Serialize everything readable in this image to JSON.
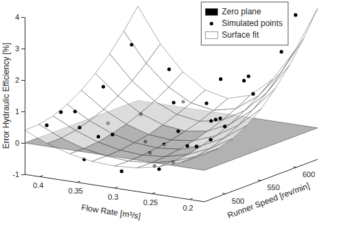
{
  "chart_data": {
    "type": "surface3d",
    "x_label": "Flow Rate [m³/s]",
    "y_label": "Runner Speed [rev/min]",
    "z_label": "Error Hydraulic Efficiency [%]",
    "xlim": [
      0.18,
      0.42
    ],
    "xticks": [
      0.2,
      0.25,
      0.3,
      0.35,
      0.4
    ],
    "ylim": [
      470,
      630
    ],
    "yticks": [
      500,
      550,
      600
    ],
    "zlim": [
      -1,
      4
    ],
    "zticks": [
      -1,
      0,
      1,
      2,
      3,
      4
    ],
    "grid": false,
    "legend": "northeast",
    "series": [
      {
        "name": "Zero plane",
        "type": "plane",
        "color": "#000000",
        "z": 0
      },
      {
        "name": "Simulated points",
        "type": "scatter",
        "marker": "circle",
        "color": "#000000",
        "x": [
          0.4,
          0.4,
          0.4,
          0.4,
          0.35,
          0.35,
          0.35,
          0.35,
          0.35,
          0.3,
          0.3,
          0.3,
          0.3,
          0.25,
          0.25,
          0.25,
          0.25,
          0.2,
          0.2,
          0.2,
          0.2,
          0.2,
          0.375,
          0.325,
          0.275,
          0.225,
          0.325,
          0.275,
          0.375,
          0.225,
          0.3,
          0.35,
          0.25,
          0.4,
          0.2,
          0.3
        ],
        "y": [
          480,
          520,
          560,
          600,
          480,
          520,
          560,
          600,
          620,
          480,
          520,
          560,
          600,
          480,
          520,
          560,
          600,
          480,
          520,
          560,
          600,
          620,
          500,
          540,
          500,
          540,
          580,
          580,
          540,
          580,
          540,
          500,
          500,
          500,
          500,
          620
        ],
        "z": [
          0.55,
          0.65,
          1.1,
          2.1,
          -0.35,
          0.1,
          0.4,
          1.5,
          0.3,
          -0.55,
          -0.3,
          0.05,
          0.6,
          -0.3,
          0.1,
          0.6,
          1.5,
          0.6,
          0.9,
          1.6,
          2.6,
          3.6,
          0.4,
          -0.2,
          -0.45,
          0.9,
          0.7,
          0.3,
          0.2,
          1.9,
          -0.2,
          0.2,
          -0.25,
          0.8,
          0.65,
          1.2
        ]
      },
      {
        "name": "Surface fit",
        "type": "surface",
        "color": "#ffffff",
        "x": [
          0.18,
          0.21,
          0.24,
          0.27,
          0.3,
          0.33,
          0.36,
          0.39,
          0.42
        ],
        "y": [
          470,
          490,
          510,
          530,
          550,
          570,
          590,
          610,
          630
        ],
        "z": [
          [
            0.5,
            0.15,
            -0.1,
            -0.25,
            -0.3,
            -0.26,
            -0.13,
            0.09,
            0.4
          ],
          [
            0.53,
            0.16,
            -0.1,
            -0.26,
            -0.31,
            -0.26,
            -0.13,
            0.1,
            0.42
          ],
          [
            0.67,
            0.25,
            -0.05,
            -0.23,
            -0.29,
            -0.24,
            -0.09,
            0.17,
            0.52
          ],
          [
            0.92,
            0.42,
            0.06,
            -0.16,
            -0.23,
            -0.17,
            0.01,
            0.31,
            0.72
          ],
          [
            1.28,
            0.65,
            0.21,
            -0.06,
            -0.15,
            -0.08,
            0.14,
            0.5,
            1.0
          ],
          [
            1.75,
            0.97,
            0.41,
            0.08,
            -0.03,
            0.06,
            0.32,
            0.76,
            1.37
          ],
          [
            2.32,
            1.35,
            0.66,
            0.25,
            0.11,
            0.22,
            0.54,
            1.07,
            1.82
          ],
          [
            3.0,
            1.82,
            0.97,
            0.46,
            0.29,
            0.42,
            0.81,
            1.46,
            2.37
          ],
          [
            3.8,
            2.36,
            1.33,
            0.71,
            0.5,
            0.66,
            1.13,
            1.91,
            3.0
          ]
        ]
      }
    ]
  }
}
